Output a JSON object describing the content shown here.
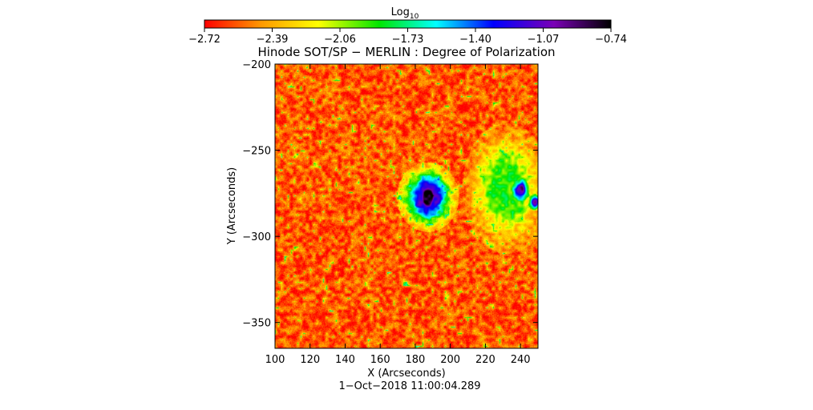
{
  "chart_data": {
    "type": "heatmap",
    "title": "Hinode SOT/SP − MERLIN : Degree of Polarization",
    "xlabel": "X (Arcseconds)",
    "ylabel": "Y (Arcseconds)",
    "timestamp": "1−Oct−2018 11:00:04.289",
    "colorbar": {
      "label_base": "Log",
      "label_sub": "10",
      "min": -2.72,
      "max": -0.74,
      "ticks": [
        "−2.72",
        "−2.39",
        "−2.06",
        "−1.73",
        "−1.40",
        "−1.07",
        "−0.74"
      ],
      "colors": [
        "#ff0000",
        "#ff9900",
        "#ffff00",
        "#00e600",
        "#00ffff",
        "#0000ff",
        "#7a00b5",
        "#000000"
      ]
    },
    "xlim": [
      100,
      250
    ],
    "ylim": [
      -365,
      -200
    ],
    "xticks": [
      100,
      120,
      140,
      160,
      180,
      200,
      220,
      240
    ],
    "yticks": [
      -200,
      -250,
      -300,
      -350
    ],
    "xtick_labels": [
      "100",
      "120",
      "140",
      "160",
      "180",
      "200",
      "220",
      "240"
    ],
    "ytick_labels": [
      "−200",
      "−250",
      "−300",
      "−350"
    ],
    "background_value": -2.55,
    "features": [
      {
        "name": "sunspot umbra",
        "x": 187,
        "y": -277,
        "rx": 6,
        "ry": 10,
        "value": -0.8
      },
      {
        "name": "sunspot penumbra",
        "x": 187,
        "y": -277,
        "rx": 14,
        "ry": 16,
        "value": -1.2
      },
      {
        "name": "plage",
        "x": 232,
        "y": -272,
        "rx": 20,
        "ry": 30,
        "value": -1.9
      },
      {
        "name": "pore",
        "x": 240,
        "y": -273,
        "rx": 4,
        "ry": 5,
        "value": -1.0
      },
      {
        "name": "pore",
        "x": 248,
        "y": -280,
        "rx": 3,
        "ry": 4,
        "value": -1.05
      }
    ]
  }
}
